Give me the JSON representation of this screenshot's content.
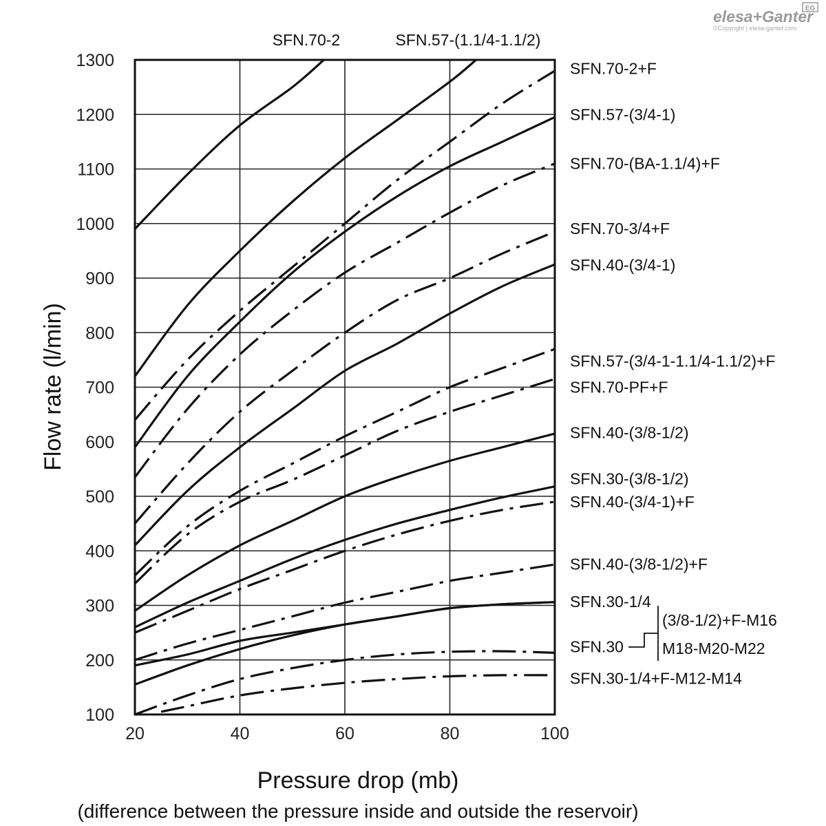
{
  "brand": {
    "logo_text": "elesa+Ganter",
    "badge": "EG",
    "copyright": "©Copyright | elesa-ganter.com"
  },
  "chart_data": {
    "type": "line",
    "xlabel": "Pressure drop (mb)",
    "xlabel_note": "(difference between the pressure inside and outside the reservoir)",
    "ylabel": "Flow rate (l/min)",
    "xlim": [
      20,
      100
    ],
    "ylim": [
      100,
      1300
    ],
    "xticks": [
      20,
      40,
      60,
      80,
      100
    ],
    "yticks": [
      100,
      200,
      300,
      400,
      500,
      600,
      700,
      800,
      900,
      1000,
      1100,
      1200,
      1300
    ],
    "grid": true,
    "x": [
      20,
      30,
      40,
      50,
      60,
      70,
      80,
      90,
      100
    ],
    "series": [
      {
        "name": "SFN.70-2",
        "style": "solid",
        "x": [
          20,
          30,
          40,
          50,
          56
        ],
        "values": [
          990,
          1090,
          1180,
          1250,
          1300
        ]
      },
      {
        "name": "SFN.57-(1.1/4-1.1/2)",
        "style": "solid",
        "x": [
          20,
          30,
          40,
          50,
          60,
          70,
          80,
          85
        ],
        "values": [
          720,
          850,
          950,
          1040,
          1120,
          1190,
          1260,
          1300
        ]
      },
      {
        "name": "SFN.70-2+F",
        "style": "dashdot",
        "x": [
          20,
          30,
          40,
          50,
          60,
          70,
          80,
          90,
          100
        ],
        "values": [
          640,
          750,
          840,
          920,
          1000,
          1080,
          1150,
          1220,
          1280
        ]
      },
      {
        "name": "SFN.57-(3/4-1)",
        "style": "solid",
        "x": [
          20,
          30,
          40,
          50,
          60,
          70,
          80,
          90,
          100
        ],
        "values": [
          590,
          720,
          820,
          910,
          985,
          1050,
          1105,
          1150,
          1195
        ]
      },
      {
        "name": "SFN.70-(BA-1.1/4)+F",
        "style": "dashdot",
        "x": [
          20,
          30,
          40,
          50,
          60,
          70,
          80,
          90,
          100
        ],
        "values": [
          535,
          660,
          760,
          840,
          910,
          965,
          1020,
          1070,
          1110
        ]
      },
      {
        "name": "SFN.70-3/4+F",
        "style": "dashdot",
        "x": [
          20,
          30,
          40,
          50,
          60,
          70,
          80,
          90,
          100
        ],
        "values": [
          450,
          560,
          655,
          730,
          800,
          860,
          900,
          945,
          985
        ]
      },
      {
        "name": "SFN.40-(3/4-1)",
        "style": "solid",
        "x": [
          20,
          30,
          40,
          50,
          60,
          70,
          80,
          90,
          100
        ],
        "values": [
          410,
          510,
          590,
          660,
          730,
          780,
          835,
          885,
          925
        ]
      },
      {
        "name": "SFN.57-(3/4-1-1.1/4-1.1/2)+F",
        "style": "dashdot",
        "x": [
          20,
          30,
          40,
          50,
          60,
          70,
          80,
          90,
          100
        ],
        "values": [
          355,
          445,
          510,
          560,
          610,
          655,
          700,
          735,
          770
        ]
      },
      {
        "name": "SFN.70-PF+F",
        "style": "dashdot",
        "x": [
          20,
          30,
          40,
          50,
          60,
          70,
          80,
          90,
          100
        ],
        "values": [
          340,
          430,
          490,
          530,
          575,
          620,
          655,
          685,
          715
        ]
      },
      {
        "name": "SFN.40-(3/8-1/2)",
        "style": "solid",
        "x": [
          20,
          30,
          40,
          50,
          60,
          70,
          80,
          90,
          100
        ],
        "values": [
          290,
          355,
          410,
          455,
          500,
          535,
          565,
          590,
          615
        ]
      },
      {
        "name": "SFN.30-(3/8-1/2)",
        "style": "solid",
        "x": [
          20,
          30,
          40,
          50,
          60,
          70,
          80,
          90,
          100
        ],
        "values": [
          260,
          305,
          345,
          385,
          420,
          450,
          475,
          498,
          518
        ]
      },
      {
        "name": "SFN.40-(3/4-1)+F",
        "style": "dashdot",
        "x": [
          20,
          30,
          40,
          50,
          60,
          70,
          80,
          90,
          100
        ],
        "values": [
          250,
          290,
          330,
          365,
          400,
          430,
          455,
          475,
          490
        ]
      },
      {
        "name": "SFN.40-(3/8-1/2)+F",
        "style": "dashdot",
        "x": [
          20,
          30,
          40,
          50,
          60,
          70,
          80,
          90,
          100
        ],
        "values": [
          200,
          230,
          255,
          280,
          305,
          325,
          345,
          360,
          375
        ]
      },
      {
        "name": "SFN.30-1/4",
        "style": "solid",
        "x": [
          20,
          30,
          40,
          50,
          60,
          70,
          80,
          90,
          100
        ],
        "values": [
          190,
          210,
          235,
          250,
          265,
          280,
          295,
          302,
          306
        ]
      },
      {
        "name": "SFN.30-(3/8-1/2)+F-M16 / M18-M20-M22",
        "style": "solid",
        "x": [
          20,
          30,
          40,
          50,
          60,
          70,
          80,
          90,
          100
        ],
        "values": [
          155,
          190,
          220,
          245,
          265,
          280,
          295,
          302,
          306
        ]
      },
      {
        "name": "SFN.30 (3/8-1/2)+F-M16 / M18-M20-M22",
        "style": "dashdot",
        "x": [
          20,
          30,
          40,
          50,
          60,
          70,
          80,
          90,
          100
        ],
        "values": [
          100,
          135,
          165,
          185,
          200,
          210,
          215,
          216,
          213
        ]
      },
      {
        "name": "SFN.30-1/4+F-M12-M14",
        "style": "dashdot",
        "x": [
          25,
          30,
          40,
          50,
          60,
          70,
          80,
          90,
          100
        ],
        "values": [
          105,
          115,
          135,
          148,
          158,
          165,
          170,
          172,
          172
        ]
      }
    ],
    "labels": {
      "top": [
        "SFN.70-2",
        "SFN.57-(1.1/4-1.1/2)"
      ],
      "right": [
        {
          "text": "SFN.70-2+F",
          "y": 1284
        },
        {
          "text": "SFN.57-(3/4-1)",
          "y": 1200
        },
        {
          "text": "SFN.70-(BA-1.1/4)+F",
          "y": 1110
        },
        {
          "text": "SFN.70-3/4+F",
          "y": 991
        },
        {
          "text": "SFN.40-(3/4-1)",
          "y": 924
        },
        {
          "text": "SFN.57-(3/4-1-1.1/4-1.1/2)+F",
          "y": 748
        },
        {
          "text": "SFN.70-PF+F",
          "y": 700
        },
        {
          "text": "SFN.40-(3/8-1/2)",
          "y": 617
        },
        {
          "text": "SFN.30-(3/8-1/2)",
          "y": 532
        },
        {
          "text": "SFN.40-(3/4-1)+F",
          "y": 490
        },
        {
          "text": "SFN.40-(3/8-1/2)+F",
          "y": 376
        },
        {
          "text": "SFN.30-1/4",
          "y": 307
        },
        {
          "text": "SFN.30",
          "y": 224
        },
        {
          "text": "SFN.30-1/4+F-M12-M14",
          "y": 166
        }
      ],
      "bracket": [
        "(3/8-1/2)+F-M16",
        "M18-M20-M22"
      ]
    }
  }
}
